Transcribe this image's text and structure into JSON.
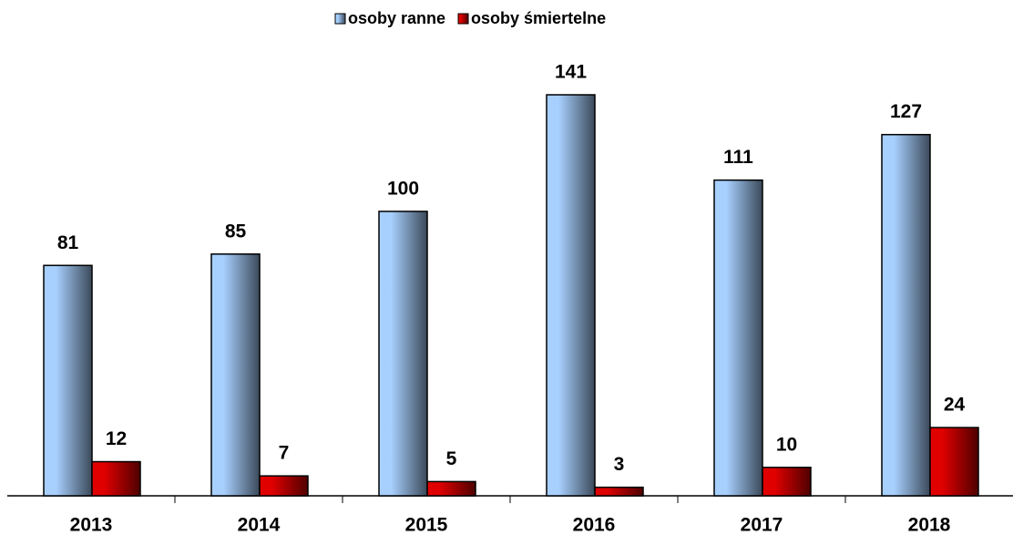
{
  "chart_data": {
    "type": "bar",
    "categories": [
      "2013",
      "2014",
      "2015",
      "2016",
      "2017",
      "2018"
    ],
    "series": [
      {
        "name": "osoby ranne",
        "color": "#a8d0ff",
        "values": [
          81,
          85,
          100,
          141,
          111,
          127
        ]
      },
      {
        "name": "osoby śmiertelne",
        "color": "#e00000",
        "values": [
          12,
          7,
          5,
          3,
          10,
          24
        ]
      }
    ]
  }
}
